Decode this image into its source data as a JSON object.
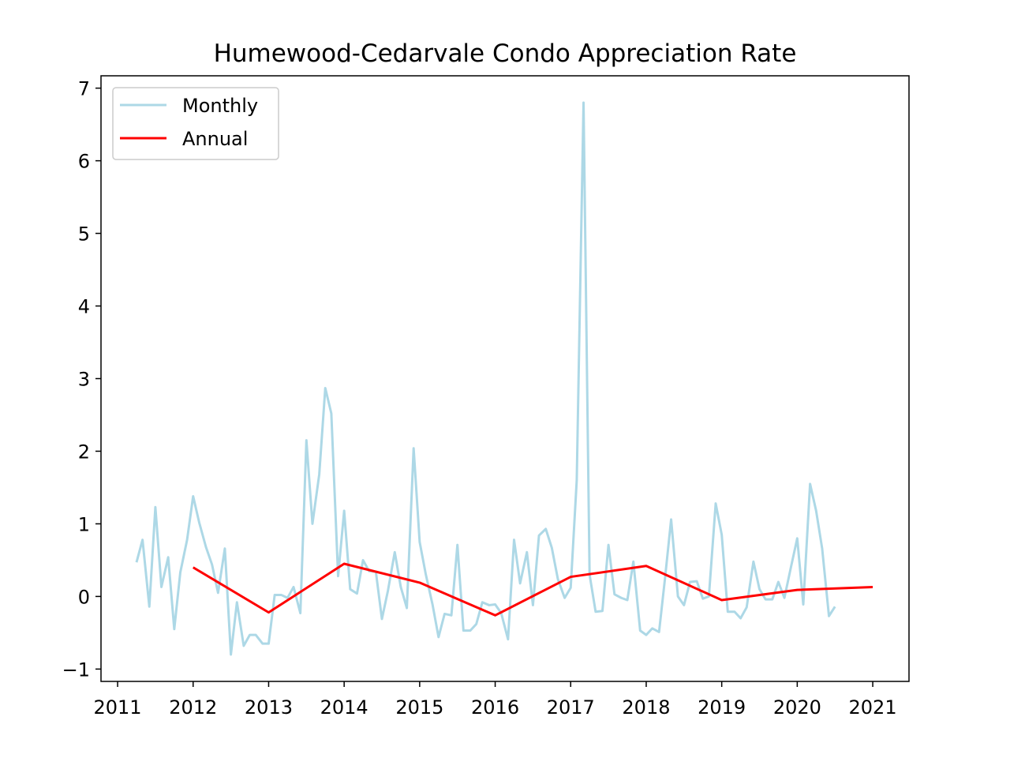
{
  "chart_data": {
    "type": "line",
    "title": "Humewood-Cedarvale Condo Appreciation Rate",
    "xlabel": "",
    "ylabel": "",
    "xlim": [
      2010.78,
      2021.48
    ],
    "ylim": [
      -1.17,
      7.17
    ],
    "x_ticks": [
      2011,
      2012,
      2013,
      2014,
      2015,
      2016,
      2017,
      2018,
      2019,
      2020,
      2021
    ],
    "y_ticks": [
      -1,
      0,
      1,
      2,
      3,
      4,
      5,
      6,
      7
    ],
    "grid": false,
    "legend": {
      "position": "top-left"
    },
    "series": [
      {
        "name": "Monthly",
        "color": "#add8e6",
        "x": [
          2011.25,
          2011.33,
          2011.42,
          2011.5,
          2011.58,
          2011.67,
          2011.75,
          2011.83,
          2011.92,
          2012.0,
          2012.08,
          2012.17,
          2012.25,
          2012.33,
          2012.42,
          2012.5,
          2012.58,
          2012.67,
          2012.75,
          2012.83,
          2012.92,
          2013.0,
          2013.08,
          2013.17,
          2013.25,
          2013.33,
          2013.42,
          2013.5,
          2013.58,
          2013.67,
          2013.75,
          2013.83,
          2013.92,
          2014.0,
          2014.08,
          2014.17,
          2014.25,
          2014.33,
          2014.42,
          2014.5,
          2014.58,
          2014.67,
          2014.75,
          2014.83,
          2014.92,
          2015.0,
          2015.08,
          2015.17,
          2015.25,
          2015.33,
          2015.42,
          2015.5,
          2015.58,
          2015.67,
          2015.75,
          2015.83,
          2015.92,
          2016.0,
          2016.08,
          2016.17,
          2016.25,
          2016.33,
          2016.42,
          2016.5,
          2016.58,
          2016.67,
          2016.75,
          2016.83,
          2016.92,
          2017.0,
          2017.08,
          2017.17,
          2017.25,
          2017.33,
          2017.42,
          2017.5,
          2017.58,
          2017.67,
          2017.75,
          2017.83,
          2017.92,
          2018.0,
          2018.08,
          2018.17,
          2018.25,
          2018.33,
          2018.42,
          2018.5,
          2018.58,
          2018.67,
          2018.75,
          2018.83,
          2018.92,
          2019.0,
          2019.08,
          2019.17,
          2019.25,
          2019.33,
          2019.42,
          2019.5,
          2019.58,
          2019.67,
          2019.75,
          2019.83,
          2019.92,
          2020.0,
          2020.08,
          2020.17,
          2020.25,
          2020.33,
          2020.42,
          2020.5
        ],
        "y": [
          0.47,
          0.78,
          -0.14,
          1.23,
          0.13,
          0.54,
          -0.45,
          0.33,
          0.78,
          1.38,
          1.02,
          0.68,
          0.44,
          0.05,
          0.66,
          -0.8,
          -0.08,
          -0.68,
          -0.53,
          -0.53,
          -0.65,
          -0.65,
          0.02,
          0.02,
          -0.02,
          0.13,
          -0.23,
          2.15,
          1.0,
          1.68,
          2.87,
          2.52,
          0.28,
          1.18,
          0.1,
          0.04,
          0.5,
          0.35,
          0.34,
          -0.31,
          0.08,
          0.61,
          0.13,
          -0.16,
          2.04,
          0.75,
          0.31,
          -0.11,
          -0.56,
          -0.24,
          -0.26,
          0.71,
          -0.47,
          -0.47,
          -0.38,
          -0.08,
          -0.12,
          -0.11,
          -0.23,
          -0.59,
          0.78,
          0.18,
          0.61,
          -0.12,
          0.84,
          0.93,
          0.67,
          0.24,
          -0.02,
          0.12,
          1.6,
          6.8,
          0.3,
          -0.21,
          -0.2,
          0.71,
          0.03,
          -0.02,
          -0.05,
          0.48,
          -0.47,
          -0.53,
          -0.44,
          -0.49,
          0.26,
          1.06,
          0.0,
          -0.12,
          0.2,
          0.21,
          -0.03,
          0.0,
          1.28,
          0.85,
          -0.21,
          -0.21,
          -0.3,
          -0.15,
          0.48,
          0.1,
          -0.04,
          -0.04,
          0.2,
          -0.02,
          0.42,
          0.8,
          -0.11,
          1.55,
          1.18,
          0.66,
          -0.27,
          -0.14
        ]
      },
      {
        "name": "Annual",
        "color": "#ff0000",
        "x": [
          2012,
          2013,
          2014,
          2015,
          2016,
          2017,
          2018,
          2019,
          2020,
          2021
        ],
        "y": [
          0.4,
          -0.22,
          0.45,
          0.19,
          -0.26,
          0.27,
          0.42,
          -0.05,
          0.09,
          0.13
        ]
      }
    ]
  }
}
